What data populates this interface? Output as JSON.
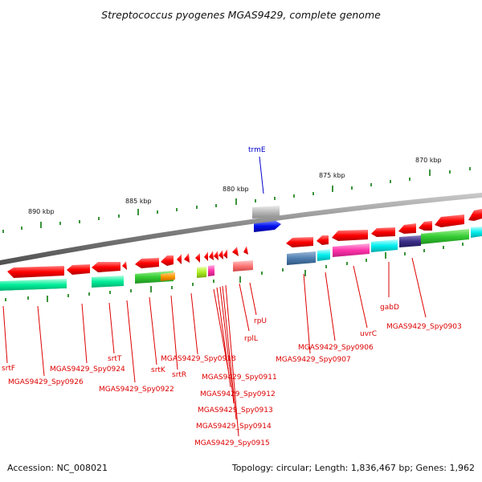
{
  "title": "Streptococcus pyogenes MGAS9429, complete genome",
  "footer": {
    "accession": "Accession: NC_008021",
    "summary": "Topology: circular; Length: 1,836,467 bp; Genes: 1,962"
  },
  "ticks": [
    "890 kbp",
    "885 kbp",
    "880 kbp",
    "875 kbp",
    "870 kbp"
  ],
  "labels": {
    "trmE": "trmE",
    "srtF": "srtF",
    "spy0926": "MGAS9429_Spy0926",
    "spy0924": "MGAS9429_Spy0924",
    "srtT": "srtT",
    "spy0922": "MGAS9429_Spy0922",
    "srtK": "srtK",
    "srtR": "srtR",
    "spy0918": "MGAS9429_Spy0918",
    "spy0911": "MGAS9429_Spy0911",
    "spy0912": "MGAS9429_Spy0912",
    "spy0913": "MGAS9429_Spy0913",
    "spy0914": "MGAS9429_Spy0914",
    "spy0915": "MGAS9429_Spy0915",
    "rplL": "rplL",
    "rpU": "rpU",
    "spy0907": "MGAS9429_Spy0907",
    "spy0906": "MGAS9429_Spy0906",
    "uvrC": "uvrC",
    "gabD": "gabD",
    "spy0903": "MGAS9429_Spy0903"
  },
  "colors": {
    "cds": "#ff0000",
    "trna_label": "#0000cc",
    "backbone": "#808080",
    "tick": "#007700"
  }
}
